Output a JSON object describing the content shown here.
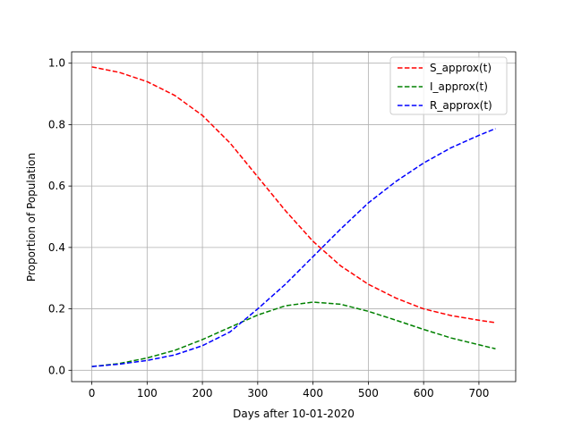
{
  "chart_data": {
    "type": "line",
    "x_label": "Days after 10-01-2020",
    "y_label": "Proportion of Population",
    "x": [
      0,
      50,
      100,
      150,
      200,
      250,
      300,
      350,
      400,
      450,
      500,
      550,
      600,
      650,
      700,
      730
    ],
    "series": [
      {
        "name": "S_approx(t)",
        "color": "#ff0000",
        "values": [
          0.988,
          0.97,
          0.94,
          0.895,
          0.83,
          0.74,
          0.63,
          0.52,
          0.42,
          0.34,
          0.28,
          0.235,
          0.2,
          0.178,
          0.163,
          0.155
        ]
      },
      {
        "name": "I_approx(t)",
        "color": "#008000",
        "values": [
          0.012,
          0.022,
          0.04,
          0.065,
          0.1,
          0.14,
          0.18,
          0.21,
          0.222,
          0.215,
          0.192,
          0.163,
          0.133,
          0.105,
          0.083,
          0.07
        ]
      },
      {
        "name": "R_approx(t)",
        "color": "#0000ff",
        "values": [
          0.012,
          0.02,
          0.032,
          0.05,
          0.08,
          0.125,
          0.2,
          0.28,
          0.37,
          0.46,
          0.545,
          0.615,
          0.675,
          0.725,
          0.765,
          0.787
        ]
      }
    ],
    "xlim": [
      -36.5,
      766.5
    ],
    "xticks": [
      0,
      100,
      200,
      300,
      400,
      500,
      600,
      700
    ],
    "ylim": [
      -0.037,
      1.037
    ],
    "yticks": [
      {
        "value": 0,
        "label": "0.0"
      },
      0.2,
      0.4,
      0.6,
      0.8,
      {
        "value": 1,
        "label": "1.0"
      }
    ],
    "grid": true,
    "legend": "upper-right",
    "dashed": true
  }
}
